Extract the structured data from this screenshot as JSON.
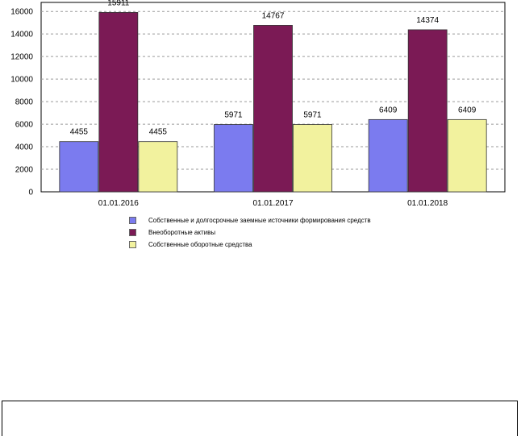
{
  "chart_data": {
    "type": "bar",
    "categories": [
      "01.01.2016",
      "01.01.2017",
      "01.01.2018"
    ],
    "series": [
      {
        "name": "Собственные и долгосрочные заемные источники формирования средств",
        "values": [
          4455,
          5971,
          6409
        ],
        "color": "#7b7bef"
      },
      {
        "name": "Внеоборотные активы",
        "values": [
          15911,
          14767,
          14374
        ],
        "color": "#7b1a55"
      },
      {
        "name": "Собственные оборотные средства",
        "values": [
          4455,
          5971,
          6409
        ],
        "color": "#f2f29e"
      }
    ],
    "ylim": [
      0,
      16800
    ],
    "yticks": [
      0,
      2000,
      4000,
      6000,
      8000,
      10000,
      12000,
      14000,
      16000
    ],
    "grid": true,
    "legend_position": "bottom"
  }
}
